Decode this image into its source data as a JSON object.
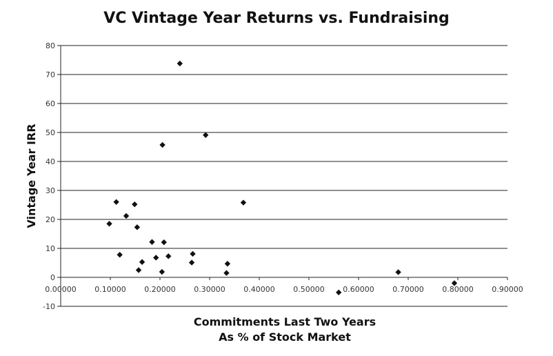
{
  "chart_data": {
    "type": "scatter",
    "title": "VC Vintage Year Returns vs. Fundraising",
    "xlabel": [
      "Commitments Last Two Years",
      "As % of Stock Market"
    ],
    "ylabel": "Vintage Year IRR",
    "xlim": [
      0,
      0.9
    ],
    "ylim": [
      -10,
      80
    ],
    "x_ticks": [
      "0.00000",
      "0.10000",
      "0.20000",
      "0.30000",
      "0.40000",
      "0.50000",
      "0.60000",
      "0.70000",
      "0.80000",
      "0.90000"
    ],
    "y_ticks": [
      "-10",
      "0",
      "10",
      "20",
      "30",
      "40",
      "50",
      "60",
      "70",
      "80"
    ],
    "grid": "horizontal",
    "legend": "none",
    "marker_color": "#111111",
    "points": [
      {
        "x": 0.098,
        "y": 18.5
      },
      {
        "x": 0.112,
        "y": 26.0
      },
      {
        "x": 0.119,
        "y": 7.8
      },
      {
        "x": 0.132,
        "y": 21.2
      },
      {
        "x": 0.149,
        "y": 25.2
      },
      {
        "x": 0.154,
        "y": 17.3
      },
      {
        "x": 0.157,
        "y": 2.5
      },
      {
        "x": 0.164,
        "y": 5.3
      },
      {
        "x": 0.184,
        "y": 12.2
      },
      {
        "x": 0.192,
        "y": 6.8
      },
      {
        "x": 0.204,
        "y": 1.9
      },
      {
        "x": 0.205,
        "y": 45.7
      },
      {
        "x": 0.208,
        "y": 12.1
      },
      {
        "x": 0.217,
        "y": 7.3
      },
      {
        "x": 0.24,
        "y": 73.8
      },
      {
        "x": 0.264,
        "y": 5.1
      },
      {
        "x": 0.266,
        "y": 8.1
      },
      {
        "x": 0.292,
        "y": 49.1
      },
      {
        "x": 0.334,
        "y": 1.5
      },
      {
        "x": 0.336,
        "y": 4.7
      },
      {
        "x": 0.368,
        "y": 25.8
      },
      {
        "x": 0.56,
        "y": -5.2
      },
      {
        "x": 0.68,
        "y": 1.8
      },
      {
        "x": 0.793,
        "y": -2.0
      }
    ]
  }
}
